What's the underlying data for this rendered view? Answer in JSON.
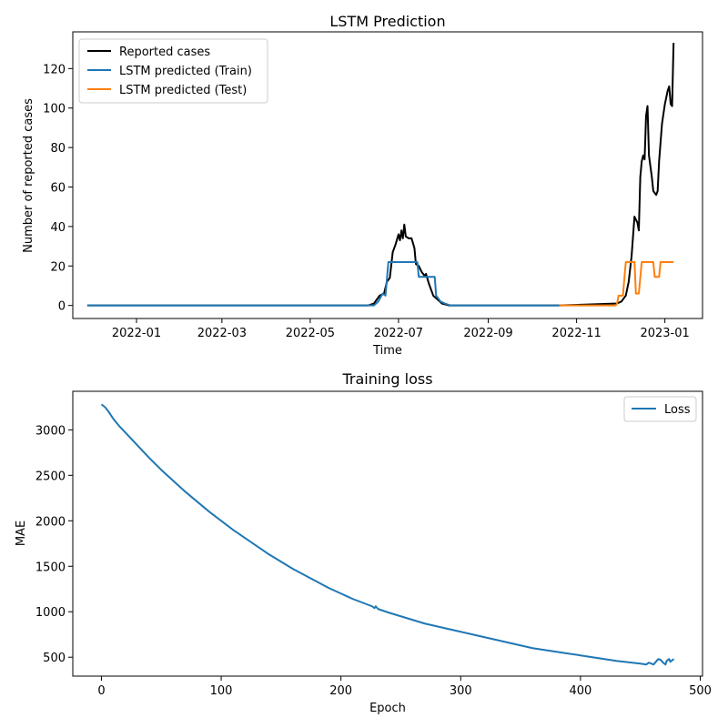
{
  "chart_data": [
    {
      "type": "line",
      "title": "LSTM Prediction",
      "xlabel": "Time",
      "ylabel": "Number of reported cases",
      "x_ticks": [
        "2022-01",
        "2022-03",
        "2022-05",
        "2022-07",
        "2022-09",
        "2022-11",
        "2023-01"
      ],
      "y_ticks": [
        "0",
        "20",
        "40",
        "60",
        "80",
        "100",
        "120"
      ],
      "xlim": [
        "2021-11-18",
        "2023-01-27"
      ],
      "ylim": [
        -6.6,
        138.6
      ],
      "grid": false,
      "legend": "upper-left",
      "series": [
        {
          "name": "Reported cases",
          "color": "#000000",
          "points": [
            [
              "2021-11-28",
              0
            ],
            [
              "2022-06-10",
              0
            ],
            [
              "2022-06-14",
              1
            ],
            [
              "2022-06-18",
              5
            ],
            [
              "2022-06-21",
              6
            ],
            [
              "2022-06-23",
              12
            ],
            [
              "2022-06-25",
              14
            ],
            [
              "2022-06-27",
              27
            ],
            [
              "2022-06-29",
              31
            ],
            [
              "2022-07-01",
              36
            ],
            [
              "2022-07-02",
              33
            ],
            [
              "2022-07-03",
              38
            ],
            [
              "2022-07-04",
              34
            ],
            [
              "2022-07-05",
              41
            ],
            [
              "2022-07-06",
              35
            ],
            [
              "2022-07-08",
              34
            ],
            [
              "2022-07-10",
              34
            ],
            [
              "2022-07-12",
              29
            ],
            [
              "2022-07-13",
              21
            ],
            [
              "2022-07-15",
              20
            ],
            [
              "2022-07-17",
              17
            ],
            [
              "2022-07-19",
              15
            ],
            [
              "2022-07-20",
              16
            ],
            [
              "2022-07-22",
              11
            ],
            [
              "2022-07-25",
              5
            ],
            [
              "2022-07-28",
              3
            ],
            [
              "2022-07-31",
              1
            ],
            [
              "2022-08-05",
              0
            ],
            [
              "2022-10-20",
              0
            ],
            [
              "2022-11-29",
              1
            ],
            [
              "2022-12-02",
              2
            ],
            [
              "2022-12-05",
              5
            ],
            [
              "2022-12-07",
              12
            ],
            [
              "2022-12-09",
              25
            ],
            [
              "2022-12-11",
              45
            ],
            [
              "2022-12-13",
              42
            ],
            [
              "2022-12-14",
              38
            ],
            [
              "2022-12-15",
              65
            ],
            [
              "2022-12-16",
              73
            ],
            [
              "2022-12-17",
              76
            ],
            [
              "2022-12-18",
              74
            ],
            [
              "2022-12-19",
              96
            ],
            [
              "2022-12-20",
              101
            ],
            [
              "2022-12-21",
              76
            ],
            [
              "2022-12-23",
              65
            ],
            [
              "2022-12-24",
              58
            ],
            [
              "2022-12-26",
              56
            ],
            [
              "2022-12-27",
              58
            ],
            [
              "2022-12-28",
              73
            ],
            [
              "2022-12-30",
              92
            ],
            [
              "2023-01-01",
              102
            ],
            [
              "2023-01-03",
              109
            ],
            [
              "2023-01-04",
              111
            ],
            [
              "2023-01-05",
              102
            ],
            [
              "2023-01-06",
              101
            ],
            [
              "2023-01-07",
              133
            ]
          ]
        },
        {
          "name": "LSTM predicted (Train)",
          "color": "#1f77b4",
          "points": [
            [
              "2021-11-28",
              0
            ],
            [
              "2022-06-14",
              0
            ],
            [
              "2022-06-17",
              2
            ],
            [
              "2022-06-20",
              6
            ],
            [
              "2022-06-22",
              5
            ],
            [
              "2022-06-24",
              22
            ],
            [
              "2022-07-14",
              22
            ],
            [
              "2022-07-15",
              14.5
            ],
            [
              "2022-07-26",
              14.5
            ],
            [
              "2022-07-27",
              5
            ],
            [
              "2022-07-30",
              2
            ],
            [
              "2022-08-02",
              1
            ],
            [
              "2022-08-06",
              0
            ],
            [
              "2022-10-20",
              0
            ]
          ]
        },
        {
          "name": "LSTM predicted (Test)",
          "color": "#ff7f0e",
          "points": [
            [
              "2022-10-20",
              0
            ],
            [
              "2022-11-28",
              0
            ],
            [
              "2022-11-29",
              1
            ],
            [
              "2022-11-30",
              5
            ],
            [
              "2022-12-03",
              5
            ],
            [
              "2022-12-05",
              22
            ],
            [
              "2022-12-11",
              22
            ],
            [
              "2022-12-12",
              6
            ],
            [
              "2022-12-14",
              6
            ],
            [
              "2022-12-16",
              22
            ],
            [
              "2022-12-24",
              22
            ],
            [
              "2022-12-25",
              14.5
            ],
            [
              "2022-12-28",
              14.5
            ],
            [
              "2022-12-29",
              22
            ],
            [
              "2023-01-07",
              22
            ]
          ]
        }
      ]
    },
    {
      "type": "line",
      "title": "Training loss",
      "xlabel": "Epoch",
      "ylabel": "MAE",
      "x_ticks": [
        "0",
        "100",
        "200",
        "300",
        "400",
        "500"
      ],
      "y_ticks": [
        "500",
        "1000",
        "1500",
        "2000",
        "2500",
        "3000"
      ],
      "xlim": [
        -23.9,
        501.9
      ],
      "ylim": [
        292,
        3424
      ],
      "grid": false,
      "legend": "upper-right",
      "series": [
        {
          "name": "Loss",
          "color": "#1f77b4",
          "points": [
            [
              0,
              3280
            ],
            [
              3,
              3250
            ],
            [
              6,
              3200
            ],
            [
              10,
              3120
            ],
            [
              15,
              3040
            ],
            [
              20,
              2970
            ],
            [
              30,
              2830
            ],
            [
              40,
              2690
            ],
            [
              50,
              2560
            ],
            [
              60,
              2440
            ],
            [
              70,
              2320
            ],
            [
              80,
              2210
            ],
            [
              90,
              2100
            ],
            [
              100,
              2000
            ],
            [
              110,
              1900
            ],
            [
              120,
              1810
            ],
            [
              130,
              1720
            ],
            [
              140,
              1630
            ],
            [
              150,
              1550
            ],
            [
              160,
              1470
            ],
            [
              170,
              1400
            ],
            [
              180,
              1330
            ],
            [
              190,
              1260
            ],
            [
              200,
              1200
            ],
            [
              210,
              1140
            ],
            [
              220,
              1090
            ],
            [
              226,
              1060
            ],
            [
              228,
              1040
            ],
            [
              229,
              1060
            ],
            [
              231,
              1030
            ],
            [
              240,
              990
            ],
            [
              250,
              950
            ],
            [
              260,
              910
            ],
            [
              270,
              870
            ],
            [
              280,
              840
            ],
            [
              290,
              810
            ],
            [
              300,
              780
            ],
            [
              310,
              750
            ],
            [
              320,
              720
            ],
            [
              330,
              690
            ],
            [
              340,
              660
            ],
            [
              350,
              630
            ],
            [
              360,
              600
            ],
            [
              370,
              580
            ],
            [
              380,
              560
            ],
            [
              390,
              540
            ],
            [
              400,
              520
            ],
            [
              410,
              500
            ],
            [
              420,
              480
            ],
            [
              430,
              460
            ],
            [
              440,
              445
            ],
            [
              450,
              430
            ],
            [
              455,
              420
            ],
            [
              457,
              440
            ],
            [
              459,
              430
            ],
            [
              461,
              420
            ],
            [
              463,
              450
            ],
            [
              465,
              480
            ],
            [
              467,
              470
            ],
            [
              469,
              440
            ],
            [
              471,
              420
            ],
            [
              472,
              460
            ],
            [
              474,
              480
            ],
            [
              475,
              450
            ],
            [
              477,
              470
            ],
            [
              478,
              480
            ]
          ]
        }
      ]
    }
  ]
}
